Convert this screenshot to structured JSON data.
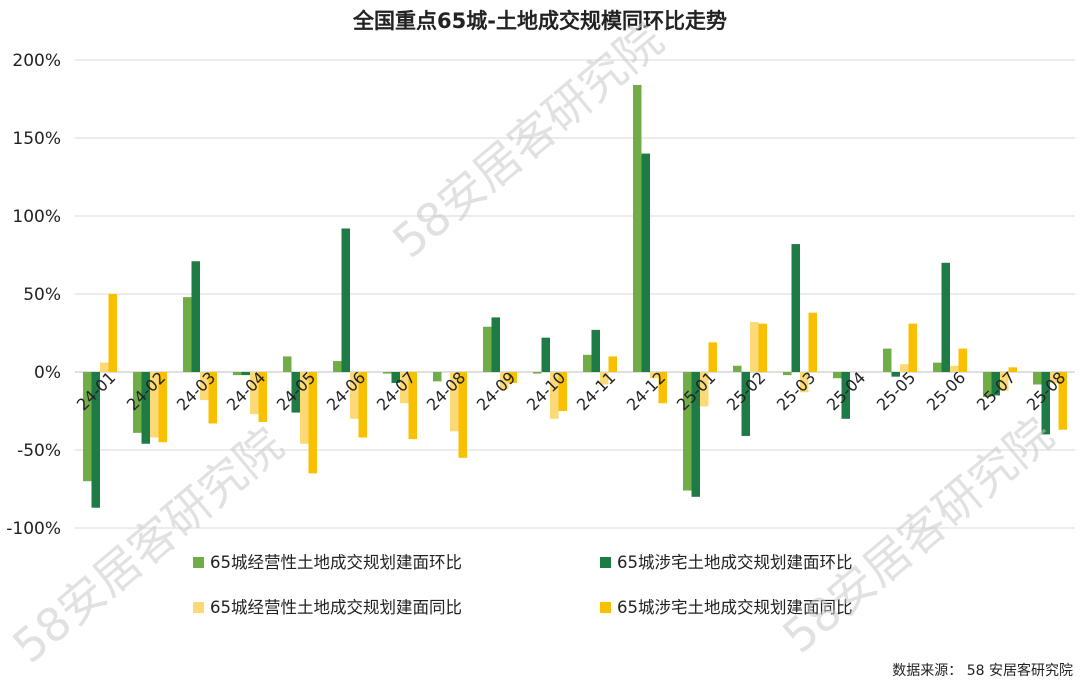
{
  "chart_data": {
    "type": "bar",
    "title": "全国重点65城-土地成交规模同环比走势",
    "categories": [
      "24-01",
      "24-02",
      "24-03",
      "24-04",
      "24-05",
      "24-06",
      "24-07",
      "24-08",
      "24-09",
      "24-10",
      "24-11",
      "24-12",
      "25-01",
      "25-02",
      "25-03",
      "25-04",
      "25-05",
      "25-06",
      "25-07",
      "25-08"
    ],
    "y_ticks": [
      200,
      150,
      100,
      50,
      0,
      -50,
      -100
    ],
    "y_tick_labels": [
      "200%",
      "150%",
      "100%",
      "50%",
      "0%",
      "-50%",
      "-100%"
    ],
    "ylim": [
      -100,
      200
    ],
    "y_unit": "%",
    "grid": true,
    "legend_position": "bottom",
    "series": [
      {
        "name": "65城经营性土地成交规划建面环比",
        "color": "#70ad47",
        "values": [
          -70,
          -39,
          48,
          -2,
          10,
          7,
          -1,
          -6,
          29,
          -1,
          11,
          184,
          -76,
          4,
          -2,
          -4,
          15,
          6,
          -16,
          -8
        ]
      },
      {
        "name": "65城涉宅土地成交规划建面环比",
        "color": "#1e7b45",
        "values": [
          -87,
          -46,
          71,
          -2,
          -26,
          92,
          -7,
          0,
          35,
          22,
          27,
          140,
          -80,
          -41,
          82,
          -30,
          -3,
          70,
          -15,
          -40
        ]
      },
      {
        "name": "65城经营性土地成交规划建面同比",
        "color": "#fcd977",
        "values": [
          6,
          -42,
          -18,
          -27,
          -46,
          -30,
          -20,
          -38,
          -11,
          -30,
          -8,
          -4,
          -22,
          32,
          -13,
          0,
          5,
          4,
          -12,
          -7
        ]
      },
      {
        "name": "65城涉宅土地成交规划建面同比",
        "color": "#f8c000",
        "values": [
          50,
          -45,
          -33,
          -32,
          -65,
          -42,
          -43,
          -55,
          -7,
          -25,
          10,
          -20,
          19,
          31,
          38,
          0,
          31,
          15,
          3,
          -37
        ]
      }
    ]
  },
  "watermark": {
    "text": "58安居客研究院"
  },
  "source": {
    "text": "数据来源：  58 安居客研究院"
  }
}
